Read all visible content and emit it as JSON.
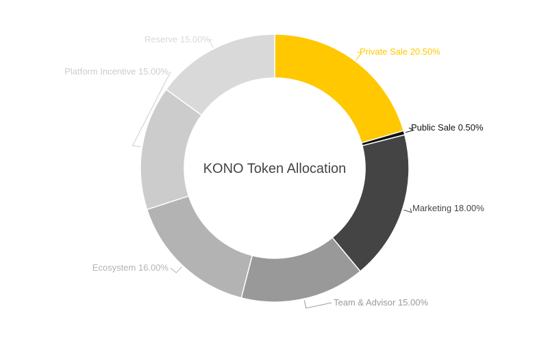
{
  "chart_data": {
    "type": "pie",
    "style": "donut",
    "title": "KONO Token Allocation",
    "slices": [
      {
        "label": "Private Sale 20.50%",
        "value": 20.5,
        "color": "#FFC800",
        "label_color": "#FFC800"
      },
      {
        "label": "Public Sale 0.50%",
        "value": 0.5,
        "color": "#111111",
        "label_color": "#111111"
      },
      {
        "label": "Marketing 18.00%",
        "value": 18.0,
        "color": "#444444",
        "label_color": "#444444"
      },
      {
        "label": "Team & Advisor 15.00%",
        "value": 15.0,
        "color": "#999999",
        "label_color": "#999999"
      },
      {
        "label": "Ecosystem 16.00%",
        "value": 16.0,
        "color": "#B3B3B3",
        "label_color": "#B3B3B3"
      },
      {
        "label": "Platform Incentive 15.00%",
        "value": 15.0,
        "color": "#CCCCCC",
        "label_color": "#CCCCCC"
      },
      {
        "label": "Reserve 15.00%",
        "value": 15.0,
        "color": "#D9D9D9",
        "label_color": "#D9D9D9"
      }
    ],
    "legend": "none",
    "start_angle": "12 o'clock, clockwise"
  }
}
